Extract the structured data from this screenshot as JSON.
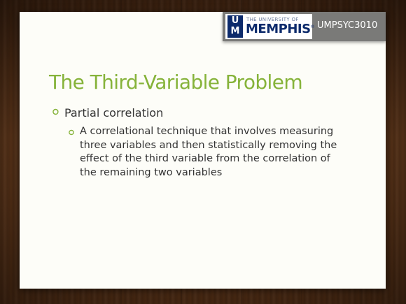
{
  "header": {
    "logo": {
      "monogram_top": "U",
      "monogram_bottom": "M",
      "university_line": "THE UNIVERSITY OF",
      "name": "MEMPHIS",
      "registered": "®"
    },
    "course_code": "UMPSYC3010"
  },
  "slide": {
    "title": "The Third-Variable Problem",
    "bullets": [
      {
        "text": "Partial correlation",
        "sub_bullets": [
          "A correlational technique that involves measuring three variables and then statistically removing the effect of the third variable from the correlation of the remaining two variables"
        ]
      }
    ]
  },
  "colors": {
    "title": "#86b33a",
    "bullet_marker": "#86b33a",
    "body_text": "#333333",
    "banner": "#7a7a78",
    "logo_blue": "#0c2a6b",
    "wood": "#4a2a14"
  },
  "icons": {
    "bullet_marker": "hollow-circle-bullet-icon"
  }
}
